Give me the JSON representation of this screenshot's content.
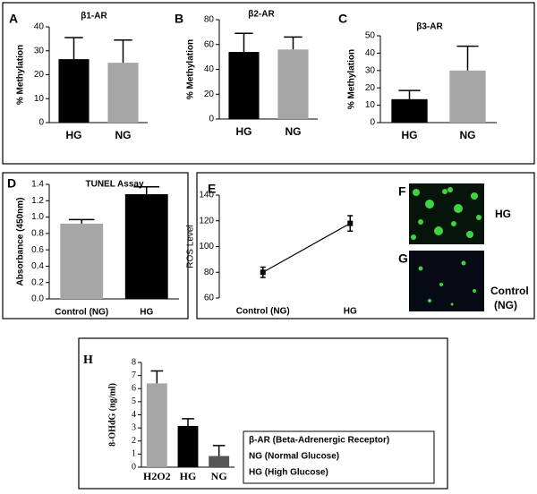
{
  "chart_data": [
    {
      "type": "bar",
      "panel": "A",
      "title": "β1-AR",
      "y_label": "% Methylation",
      "categories": [
        "HG",
        "NG"
      ],
      "values": [
        26.5,
        25
      ],
      "errors": [
        9,
        9.5
      ],
      "colors": [
        "#000000",
        "#a6a6a6"
      ],
      "ylim": [
        0,
        40
      ],
      "yticks": [
        0,
        10,
        20,
        30,
        40
      ]
    },
    {
      "type": "bar",
      "panel": "B",
      "title": "β2-AR",
      "y_label": "% Methylation",
      "categories": [
        "HG",
        "NG"
      ],
      "values": [
        54,
        56
      ],
      "errors": [
        15,
        10
      ],
      "colors": [
        "#000000",
        "#a6a6a6"
      ],
      "ylim": [
        0,
        80
      ],
      "yticks": [
        0,
        20,
        40,
        60,
        80
      ]
    },
    {
      "type": "bar",
      "panel": "C",
      "title": "β3-AR",
      "y_label": "% Methylation",
      "categories": [
        "HG",
        "NG"
      ],
      "values": [
        13.5,
        30
      ],
      "errors": [
        5,
        14
      ],
      "colors": [
        "#000000",
        "#a6a6a6"
      ],
      "ylim": [
        0,
        50
      ],
      "yticks": [
        0,
        10,
        20,
        30,
        40,
        50
      ]
    },
    {
      "type": "bar",
      "panel": "D",
      "title": "TUNEL Assay",
      "y_label": "Absorbance (450nm)",
      "categories": [
        "Control (NG)",
        "HG"
      ],
      "values": [
        0.92,
        1.28
      ],
      "errors": [
        0.05,
        0.09
      ],
      "colors": [
        "#a6a6a6",
        "#000000"
      ],
      "ylim": [
        0,
        1.4
      ],
      "yticks": [
        {
          "value": 0,
          "label": "0.0"
        },
        0.2,
        0.4,
        0.6,
        0.8,
        {
          "value": 1,
          "label": "1.0"
        },
        1.2,
        1.4
      ]
    },
    {
      "type": "line",
      "panel": "E",
      "y_label": "ROS Level",
      "categories": [
        "Control (NG)",
        "HG"
      ],
      "values": [
        80,
        118
      ],
      "errors": [
        4,
        6
      ],
      "color": "#000000",
      "ylim": [
        60,
        140
      ],
      "yticks": [
        60,
        80,
        100,
        120,
        140
      ]
    },
    {
      "type": "bar",
      "panel": "H",
      "y_label": "8-OHdG (ng/ml)",
      "categories": [
        "H2O2",
        "HG",
        "NG"
      ],
      "values": [
        6.4,
        3.15,
        0.85
      ],
      "errors": [
        0.95,
        0.55,
        0.8
      ],
      "colors": [
        "#a6a6a6",
        "#000000",
        "#555555"
      ],
      "ylim": [
        0,
        8
      ],
      "yticks": [
        0,
        1,
        2,
        3,
        4,
        5,
        6,
        7,
        8
      ]
    }
  ],
  "images": [
    {
      "panel": "F",
      "label": [
        "HG"
      ]
    },
    {
      "panel": "G",
      "label": [
        "Control",
        "(NG)"
      ]
    }
  ],
  "legend_notes": [
    "β-AR (Beta-Adrenergic Receptor)",
    "NG (Normal Glucose)",
    "HG (High Glucose)"
  ]
}
